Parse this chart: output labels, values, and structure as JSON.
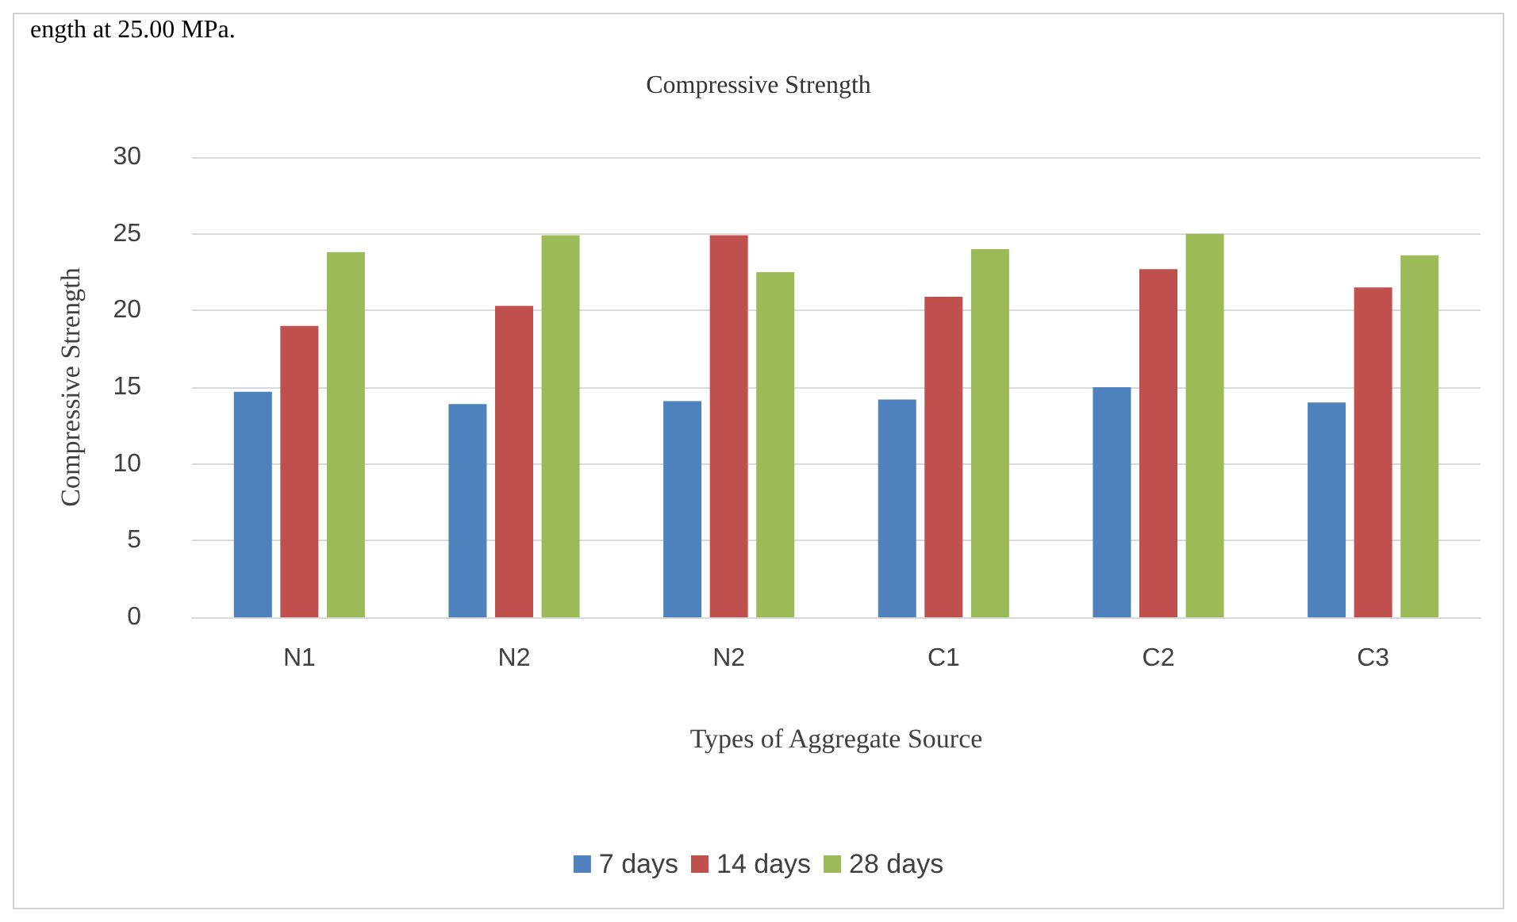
{
  "chart_data": {
    "type": "bar",
    "title": "Compressive Strength",
    "xlabel": "Types of Aggregate Source",
    "ylabel": "Compressive Strength",
    "annotations": [
      "ength at 25.00 MPa."
    ],
    "categories": [
      "N1",
      "N2",
      "N2",
      "C1",
      "C2",
      "C3"
    ],
    "series": [
      {
        "name": "7 days",
        "color": "#4f81bd",
        "values": [
          14.7,
          13.9,
          14.1,
          14.2,
          15.0,
          14.0
        ]
      },
      {
        "name": "14 days",
        "color": "#c0504d",
        "values": [
          19.0,
          20.3,
          24.9,
          20.9,
          22.7,
          21.5
        ]
      },
      {
        "name": "28 days",
        "color": "#9bbb59",
        "values": [
          23.8,
          24.9,
          22.5,
          24.0,
          25.0,
          23.6
        ]
      }
    ],
    "ylim": [
      0,
      30
    ],
    "yticks": [
      0,
      5,
      10,
      15,
      20,
      25,
      30
    ],
    "grid": "y",
    "legend": "bottom"
  }
}
